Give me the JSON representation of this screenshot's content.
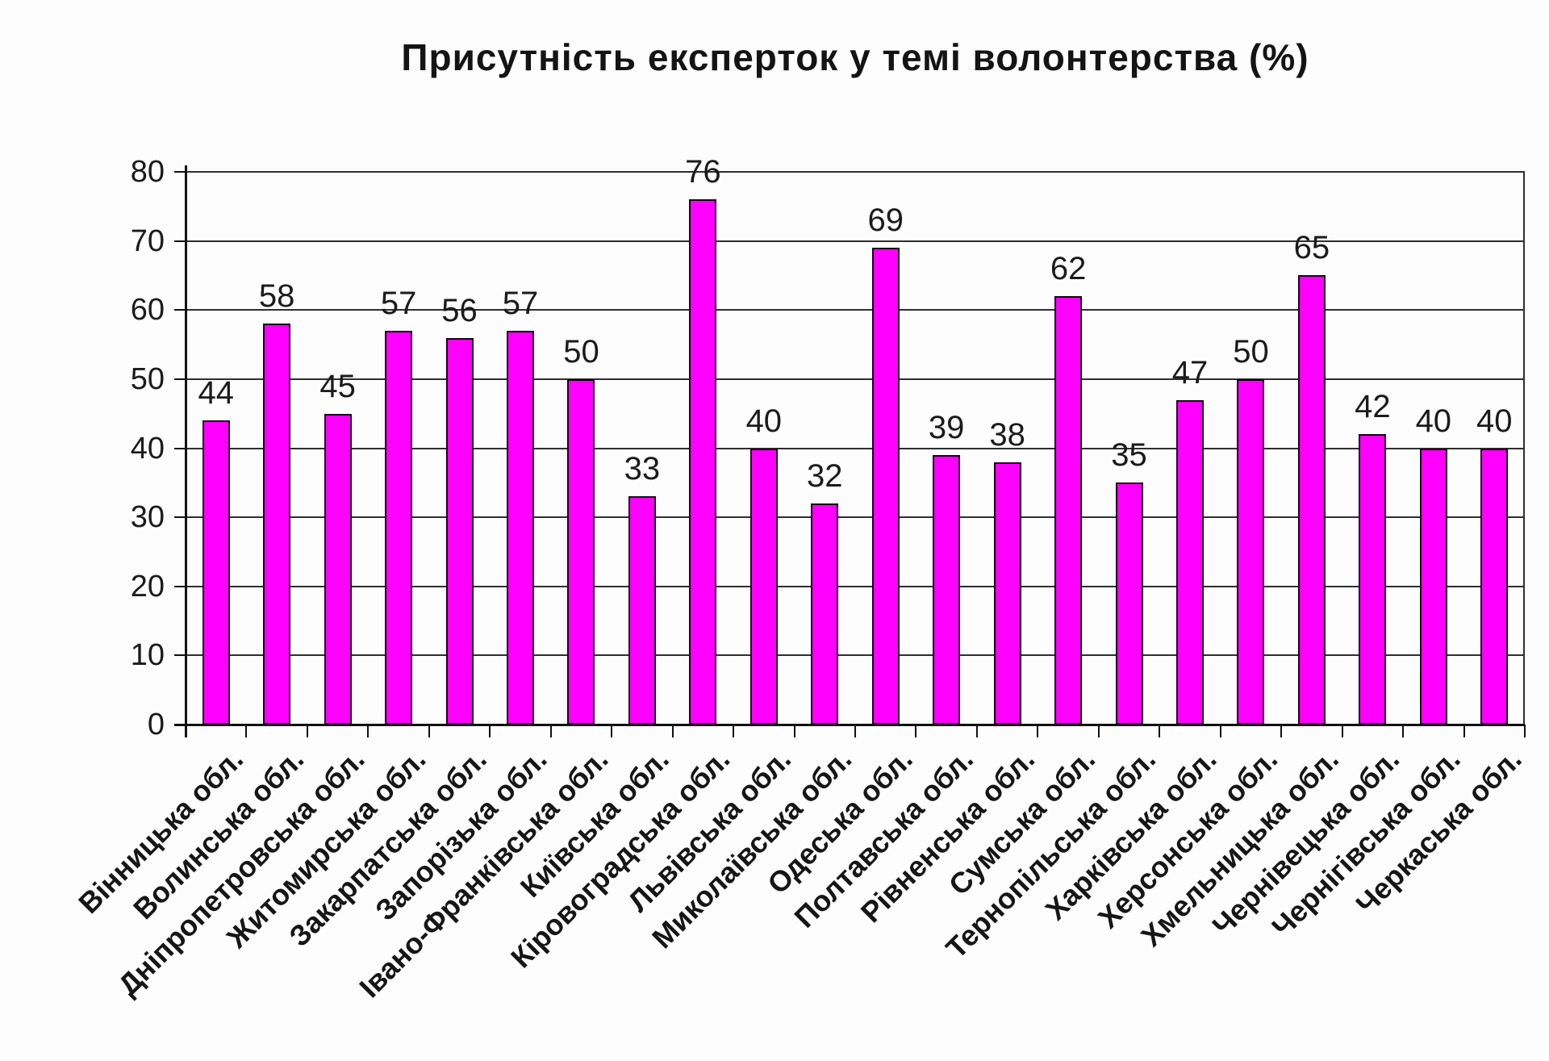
{
  "chart_data": {
    "type": "bar",
    "title": "Присутність експерток у темі волонтерства (%)",
    "categories": [
      "Вінницька обл.",
      "Волинська обл.",
      "Дніпропетровська обл.",
      "Житомирська обл.",
      "Закарпатська обл.",
      "Запорізька обл.",
      "Івано-Франківська обл.",
      "Київська обл.",
      "Кіровоградська обл.",
      "Львівська обл.",
      "Миколаївська обл.",
      "Одеська обл.",
      "Полтавська обл.",
      "Рівненська обл.",
      "Сумська обл.",
      "Тернопільська обл.",
      "Харківська обл.",
      "Херсонська обл.",
      "Хмельницька обл.",
      "Чернівецька обл.",
      "Чернігівська обл.",
      "Черкаська обл."
    ],
    "values": [
      44,
      58,
      45,
      57,
      56,
      57,
      50,
      33,
      76,
      40,
      32,
      69,
      39,
      38,
      62,
      35,
      47,
      50,
      65,
      42,
      40,
      40
    ],
    "xlabel": "",
    "ylabel": "",
    "ylim": [
      0,
      80
    ],
    "ytick_step": 10,
    "grid": true,
    "legend_position": "none",
    "value_labels_shown": true,
    "bar_color": "#ff00ff",
    "bar_border_color": "#1a001a",
    "gridline_color": "#2f2f2f",
    "axis_color": "#111111",
    "text_color": "#1b1b1b"
  }
}
